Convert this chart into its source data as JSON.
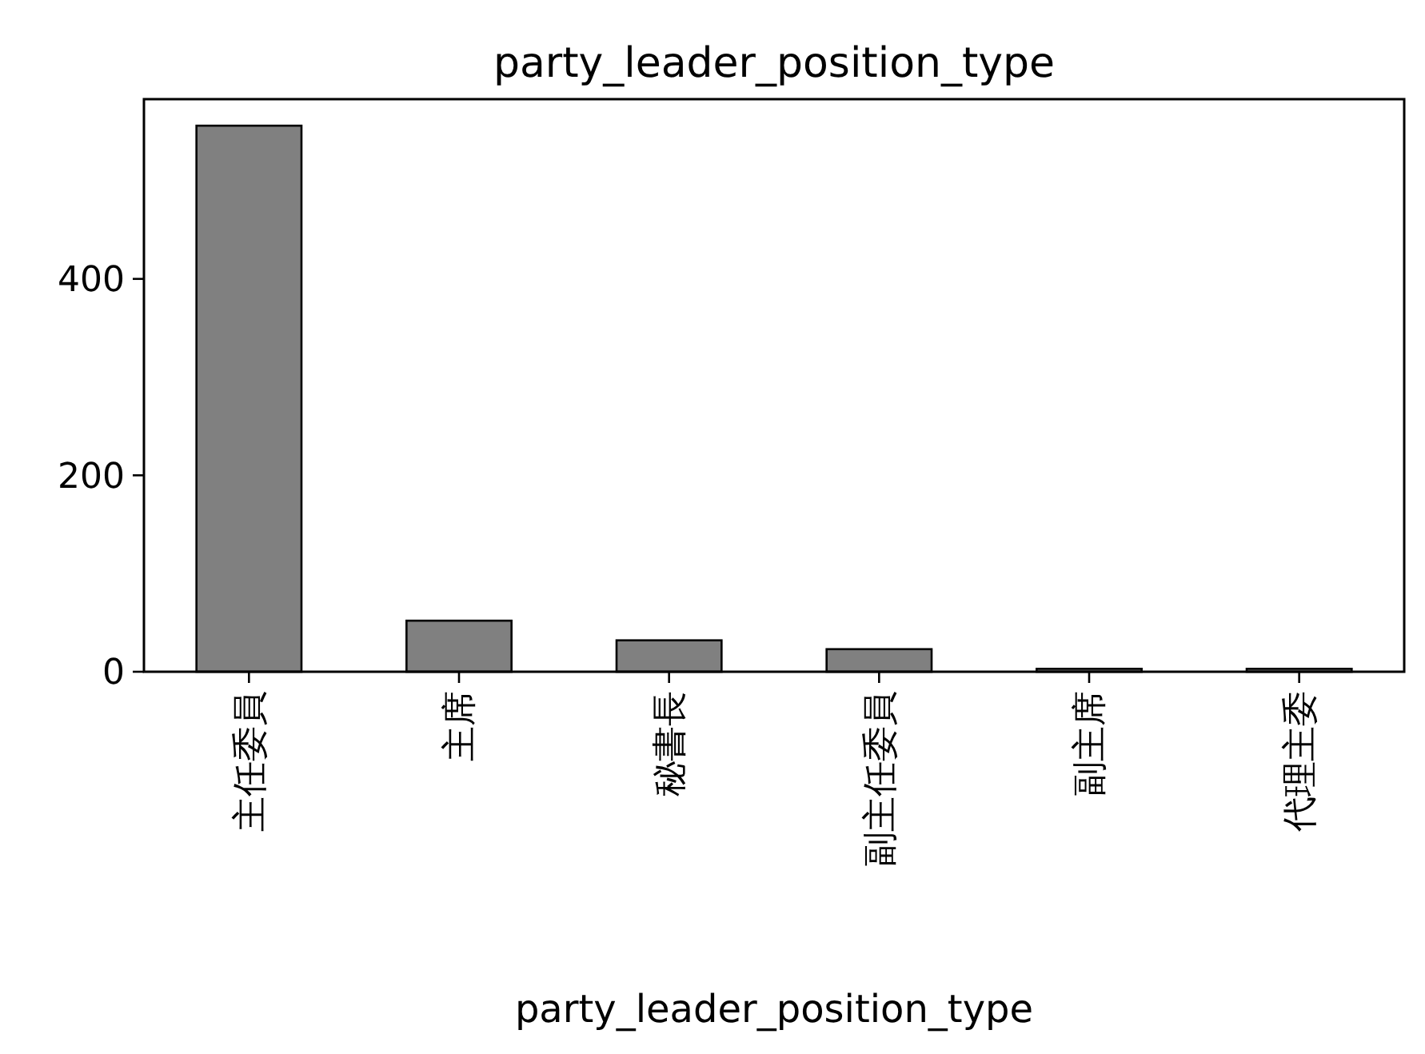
{
  "chart_data": {
    "type": "bar",
    "title": "party_leader_position_type",
    "xlabel": "party_leader_position_type",
    "categories": [
      "主任委員",
      "主席",
      "秘書長",
      "副主任委員",
      "副主席",
      "代理主委"
    ],
    "values": [
      556,
      52,
      32,
      23,
      3,
      3
    ],
    "color": "#808080",
    "ylim": [
      0,
      583
    ],
    "yticks": [
      0,
      200,
      400
    ],
    "grid": false
  }
}
